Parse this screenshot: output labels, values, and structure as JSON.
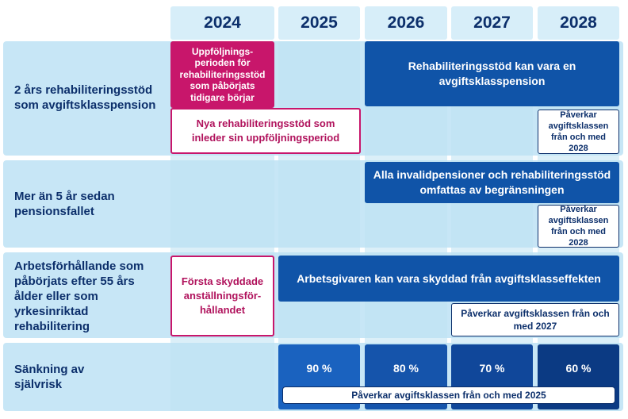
{
  "years": [
    "2024",
    "2025",
    "2026",
    "2027",
    "2028"
  ],
  "rows": [
    {
      "label": "2 års rehabiliteringsstöd som avgiftsklasspension",
      "boxes": {
        "followup": "Uppföljnings-perioden för rehabiliteringsstöd som påbörjats tidigare börjar",
        "new_support": "Nya rehabiliteringsstöd som inleder sin uppföljningsperiod",
        "main": "Rehabiliteringsstöd kan vara en avgiftsklasspension",
        "note": "Påverkar avgiftsklassen från och med 2028"
      }
    },
    {
      "label": "Mer än 5 år sedan pensionsfallet",
      "boxes": {
        "main": "Alla invalidpensioner och rehabiliteringsstöd omfattas av begränsningen",
        "note": "Påverkar avgiftsklassen från och med 2028"
      }
    },
    {
      "label": "Arbetsförhållande som påbörjats efter 55 års ålder eller som yrkesinriktad rehabilitering",
      "boxes": {
        "first": "Första skyddade anställningsför-hållandet",
        "main": "Arbetsgivaren kan vara skyddad från avgiftsklasseffekten",
        "note": "Påverkar avgiftsklassen från och med 2027"
      }
    },
    {
      "label": "Sänkning av självrisk",
      "boxes": {
        "p2025": "90 %",
        "p2026": "80 %",
        "p2027": "70 %",
        "p2028": "60 %",
        "note": "Påverkar avgiftsklassen från och med 2025"
      }
    }
  ],
  "colors": {
    "dark_blue": "#1054a8",
    "navy": "#0c2f6b",
    "magenta": "#c8166b",
    "light_band": "#c7e6f6",
    "header_bg": "#d7eef9"
  }
}
